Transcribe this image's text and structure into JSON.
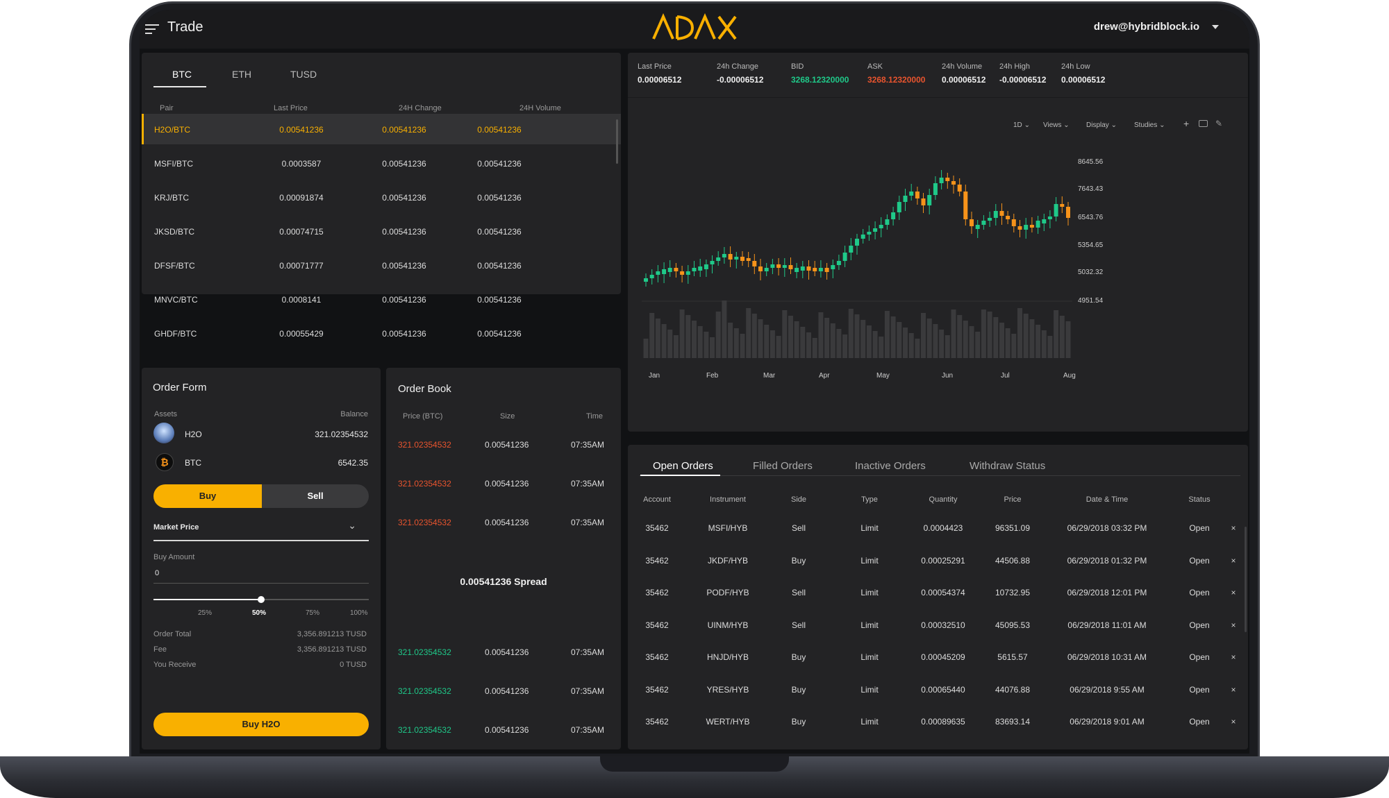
{
  "app": {
    "title": "Trade",
    "user": "drew@hybridblock.io"
  },
  "markets": {
    "tabs": [
      "BTC",
      "ETH",
      "TUSD"
    ],
    "headers": [
      "Pair",
      "Last Price",
      "24H Change",
      "24H Volume"
    ],
    "rows": [
      {
        "pair": "H2O/BTC",
        "last": "0.00541236",
        "change": "0.00541236",
        "volume": "0.00541236"
      },
      {
        "pair": "MSFI/BTC",
        "last": "0.0003587",
        "change": "0.00541236",
        "volume": "0.00541236"
      },
      {
        "pair": "KRJ/BTC",
        "last": "0.00091874",
        "change": "0.00541236",
        "volume": "0.00541236"
      },
      {
        "pair": "JKSD/BTC",
        "last": "0.00074715",
        "change": "0.00541236",
        "volume": "0.00541236"
      },
      {
        "pair": "DFSF/BTC",
        "last": "0.00071777",
        "change": "0.00541236",
        "volume": "0.00541236"
      },
      {
        "pair": "MNVC/BTC",
        "last": "0.0008141",
        "change": "0.00541236",
        "volume": "0.00541236"
      },
      {
        "pair": "GHDF/BTC",
        "last": "0.00055429",
        "change": "0.00541236",
        "volume": "0.00541236"
      }
    ]
  },
  "stats": [
    {
      "label": "Last Price",
      "value": "0.00006512"
    },
    {
      "label": "24h Change",
      "value": "-0.00006512"
    },
    {
      "label": "BID",
      "value": "3268.12320000"
    },
    {
      "label": "ASK",
      "value": "3268.12320000"
    },
    {
      "label": "24h Volume",
      "value": "0.00006512"
    },
    {
      "label": "24h High",
      "value": "-0.00006512"
    },
    {
      "label": "24h Low",
      "value": "0.00006512"
    }
  ],
  "toolbar": {
    "interval": "1D",
    "views": "Views",
    "display": "Display",
    "studies": "Studies"
  },
  "chart": {
    "yticks": [
      "8645.56",
      "7643.43",
      "6543.76",
      "5354.65",
      "5032.32",
      "4951.54"
    ],
    "xticks": [
      "Jan",
      "Feb",
      "Mar",
      "Apr",
      "May",
      "Jun",
      "Jul",
      "Aug"
    ]
  },
  "order_form": {
    "title": "Order Form",
    "assets_label": "Assets",
    "balance_label": "Balance",
    "assets": [
      {
        "name": "H2O",
        "balance": "321.02354532"
      },
      {
        "name": "BTC",
        "balance": "6542.35"
      }
    ],
    "buy": "Buy",
    "sell": "Sell",
    "order_type": "Market Price",
    "amount_label": "Buy Amount",
    "amount_value": "0",
    "slider_marks": [
      "25%",
      "50%",
      "75%",
      "100%"
    ],
    "slider_value": 0.5,
    "summary": [
      {
        "label": "Order Total",
        "value": "3,356.891213 TUSD"
      },
      {
        "label": "Fee",
        "value": "3,356.891213 TUSD"
      },
      {
        "label": "You Receive",
        "value": "0 TUSD"
      }
    ],
    "submit": "Buy H2O"
  },
  "order_book": {
    "title": "Order Book",
    "headers": [
      "Price (BTC)",
      "Size",
      "Time"
    ],
    "asks": [
      {
        "price": "321.02354532",
        "size": "0.00541236",
        "time": "07:35AM"
      },
      {
        "price": "321.02354532",
        "size": "0.00541236",
        "time": "07:35AM"
      },
      {
        "price": "321.02354532",
        "size": "0.00541236",
        "time": "07:35AM"
      }
    ],
    "spread": "0.00541236 Spread",
    "bids": [
      {
        "price": "321.02354532",
        "size": "0.00541236",
        "time": "07:35AM"
      },
      {
        "price": "321.02354532",
        "size": "0.00541236",
        "time": "07:35AM"
      },
      {
        "price": "321.02354532",
        "size": "0.00541236",
        "time": "07:35AM"
      }
    ]
  },
  "orders": {
    "tabs": [
      "Open Orders",
      "Filled Orders",
      "Inactive Orders",
      "Withdraw Status"
    ],
    "headers": [
      "Account",
      "Instrument",
      "Side",
      "Type",
      "Quantity",
      "Price",
      "Date & Time",
      "Status"
    ],
    "rows": [
      {
        "account": "35462",
        "instrument": "MSFI/HYB",
        "side": "Sell",
        "type": "Limit",
        "quantity": "0.0004423",
        "price": "96351.09",
        "datetime": "06/29/2018 03:32 PM",
        "status": "Open"
      },
      {
        "account": "35462",
        "instrument": "JKDF/HYB",
        "side": "Buy",
        "type": "Limit",
        "quantity": "0.00025291",
        "price": "44506.88",
        "datetime": "06/29/2018 01:32 PM",
        "status": "Open"
      },
      {
        "account": "35462",
        "instrument": "PODF/HYB",
        "side": "Sell",
        "type": "Limit",
        "quantity": "0.00054374",
        "price": "10732.95",
        "datetime": "06/29/2018 12:01 PM",
        "status": "Open"
      },
      {
        "account": "35462",
        "instrument": "UINM/HYB",
        "side": "Sell",
        "type": "Limit",
        "quantity": "0.00032510",
        "price": "45095.53",
        "datetime": "06/29/2018 11:01 AM",
        "status": "Open"
      },
      {
        "account": "35462",
        "instrument": "HNJD/HYB",
        "side": "Buy",
        "type": "Limit",
        "quantity": "0.00045209",
        "price": "5615.57",
        "datetime": "06/29/2018 10:31 AM",
        "status": "Open"
      },
      {
        "account": "35462",
        "instrument": "YRES/HYB",
        "side": "Buy",
        "type": "Limit",
        "quantity": "0.00065440",
        "price": "44076.88",
        "datetime": "06/29/2018 9:55 AM",
        "status": "Open"
      },
      {
        "account": "35462",
        "instrument": "WERT/HYB",
        "side": "Buy",
        "type": "Limit",
        "quantity": "0.00089635",
        "price": "83693.14",
        "datetime": "06/29/2018 9:01 AM",
        "status": "Open"
      }
    ]
  },
  "colors": {
    "accent": "#f9b000",
    "up": "#1fc989",
    "down": "#e8542e",
    "candle_up": "#1fc989",
    "candle_down": "#f7931a"
  }
}
